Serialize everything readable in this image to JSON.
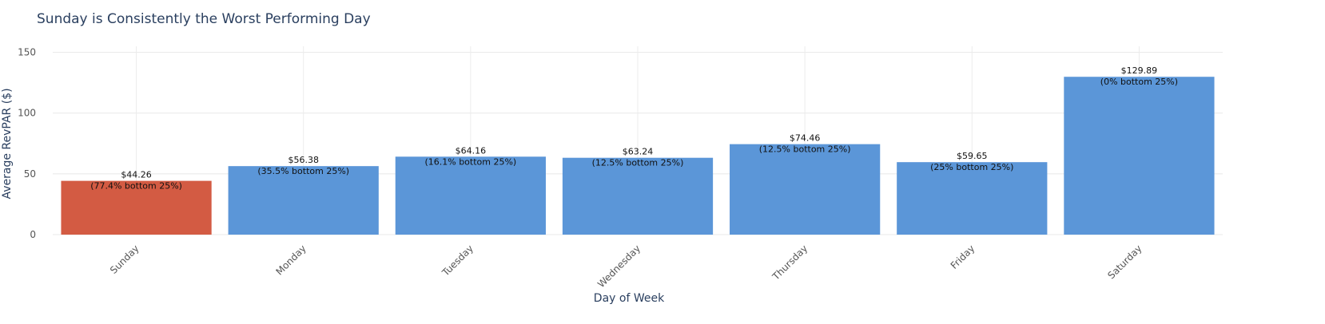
{
  "chart_data": {
    "type": "bar",
    "title": "Sunday is Consistently the Worst Performing Day",
    "xlabel": "Day of Week",
    "ylabel": "Average RevPAR ($)",
    "categories": [
      "Sunday",
      "Monday",
      "Tuesday",
      "Wednesday",
      "Thursday",
      "Friday",
      "Saturday"
    ],
    "values": [
      44.26,
      56.38,
      64.16,
      63.24,
      74.46,
      59.65,
      129.89
    ],
    "value_labels": [
      "$44.26",
      "$56.38",
      "$64.16",
      "$63.24",
      "$74.46",
      "$59.65",
      "$129.89"
    ],
    "sub_labels": [
      "(77.4% bottom 25%)",
      "(35.5% bottom 25%)",
      "(16.1% bottom 25%)",
      "(12.5% bottom 25%)",
      "(12.5% bottom 25%)",
      "(25% bottom 25%)",
      "(0% bottom 25%)"
    ],
    "bar_colors": [
      "#d35b43",
      "#5b96d8",
      "#5b96d8",
      "#5b96d8",
      "#5b96d8",
      "#5b96d8",
      "#5b96d8"
    ],
    "ylim": [
      0,
      155
    ],
    "yticks": [
      0,
      50,
      100,
      150
    ],
    "grid": true
  }
}
